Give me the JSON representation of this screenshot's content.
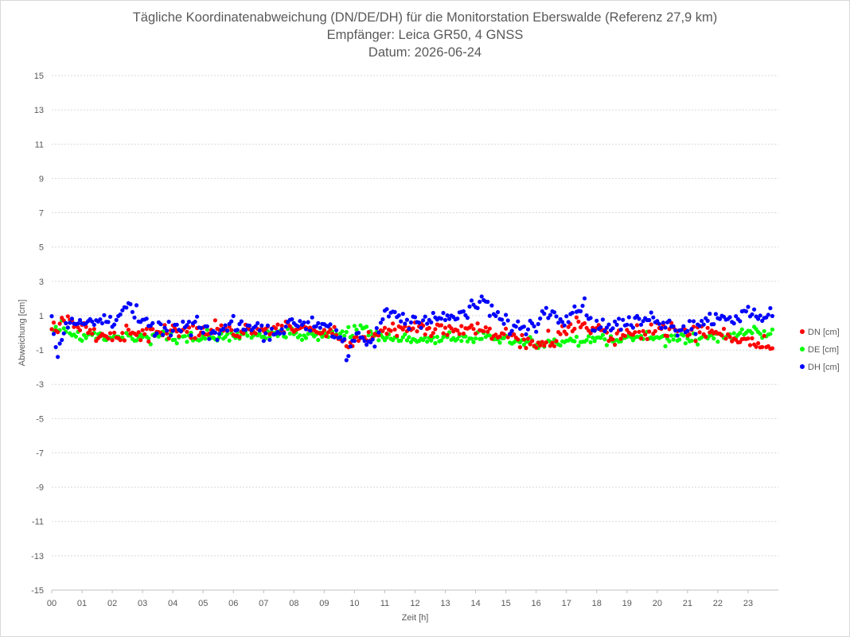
{
  "chart_data": {
    "type": "scatter",
    "title": "Tägliche Koordinatenabweichung (DN/DE/DH) für die Monitorstation Eberswalde (Referenz 27,9 km)",
    "subtitle": "Empfänger: Leica GR50, 4 GNSS",
    "subtitle2": "Datum: 2026-06-24",
    "xlabel": "Zeit [h]",
    "ylabel": "Abweichung [cm]",
    "xlim": [
      0,
      24
    ],
    "ylim": [
      -15,
      15
    ],
    "x_ticks": [
      "00",
      "01",
      "02",
      "03",
      "04",
      "05",
      "06",
      "07",
      "08",
      "09",
      "10",
      "11",
      "12",
      "13",
      "14",
      "15",
      "16",
      "17",
      "18",
      "19",
      "20",
      "21",
      "22",
      "23"
    ],
    "y_ticks": [
      "-15",
      "-13",
      "-11",
      "-9",
      "-7",
      "-5",
      "-3",
      "-1",
      "1",
      "3",
      "5",
      "7",
      "9",
      "11",
      "13",
      "15"
    ],
    "grid": "horizontal dotted",
    "legend_position": "right",
    "sample_interval_minutes": 4,
    "series": [
      {
        "name": "DN [cm]",
        "color": "#ff0000",
        "anchors_x": [
          0,
          0.5,
          1,
          1.5,
          2,
          2.5,
          3,
          4,
          5,
          6,
          6.5,
          7,
          7.5,
          8,
          8.5,
          9,
          9.4,
          9.7,
          10,
          10.5,
          11,
          11.5,
          12,
          12.5,
          13,
          13.5,
          14,
          14.5,
          15,
          15.5,
          16,
          16.5,
          17,
          17.5,
          18,
          18.5,
          19,
          19.5,
          20,
          20.5,
          21,
          21.5,
          22,
          22.5,
          23,
          23.7
        ],
        "anchors_y": [
          0.3,
          0.7,
          0.2,
          0.1,
          -0.3,
          0.2,
          -0.1,
          0,
          0.1,
          0.1,
          0.2,
          0.1,
          0.2,
          0.3,
          0.2,
          0.1,
          -0.2,
          -0.9,
          -0.4,
          -0.2,
          0.1,
          0.3,
          0.4,
          0.1,
          0.1,
          0.1,
          0.2,
          0.1,
          -0.1,
          -0.4,
          -0.5,
          -0.4,
          0.1,
          0.6,
          0.2,
          -0.2,
          -0.1,
          0.1,
          0.3,
          0.2,
          0,
          0.1,
          0,
          -0.3,
          -0.4,
          -0.7
        ],
        "noise": 0.3
      },
      {
        "name": "DE [cm]",
        "color": "#00ff00",
        "anchors_x": [
          0,
          0.5,
          1,
          1.5,
          2,
          3,
          4,
          5,
          6,
          7,
          8,
          9,
          9.5,
          10,
          10.5,
          11,
          12,
          13,
          14,
          15,
          15.5,
          16,
          17,
          18,
          18.5,
          19,
          20,
          21,
          22,
          22.5,
          23,
          23.8
        ],
        "anchors_y": [
          0.1,
          0.3,
          -0.3,
          -0.2,
          -0.4,
          -0.3,
          -0.2,
          -0.3,
          -0.2,
          -0.1,
          -0.1,
          -0.1,
          -0.1,
          0.1,
          0,
          -0.3,
          -0.4,
          -0.3,
          -0.3,
          -0.3,
          -0.5,
          -0.7,
          -0.4,
          -0.4,
          -0.4,
          -0.3,
          -0.3,
          -0.3,
          -0.2,
          -0.1,
          0,
          0.1
        ],
        "noise": 0.25
      },
      {
        "name": "DH [cm]",
        "color": "#0000ff",
        "anchors_x": [
          0,
          0.2,
          0.5,
          1,
          1.5,
          2,
          2.5,
          3,
          3.5,
          4,
          4.5,
          5,
          5.5,
          6,
          6.5,
          7,
          7.5,
          8,
          8.5,
          9,
          9.5,
          9.8,
          10,
          10.3,
          10.6,
          11,
          11.3,
          11.7,
          12,
          12.5,
          13,
          13.5,
          14,
          14.3,
          14.6,
          15,
          15.5,
          16,
          16.3,
          16.6,
          17,
          17.5,
          18,
          18.5,
          19,
          19.5,
          20,
          20.5,
          21,
          21.5,
          22,
          22.5,
          23,
          23.5,
          23.8
        ],
        "anchors_y": [
          0.6,
          -0.9,
          0.5,
          0.5,
          0.7,
          0.8,
          1.6,
          0.5,
          0.2,
          0.2,
          0.3,
          0.3,
          -0.2,
          0.7,
          0.3,
          0.2,
          0.1,
          0.6,
          0.5,
          0.6,
          -0.2,
          -1.5,
          -0.3,
          -0.5,
          -0.6,
          1.0,
          1.3,
          0.6,
          0.8,
          0.9,
          0.8,
          1.0,
          1.5,
          2.0,
          1.0,
          0.6,
          0.2,
          0.6,
          1.2,
          1.3,
          0.9,
          1.7,
          0.3,
          0.5,
          0.5,
          0.7,
          0.9,
          0.3,
          0.4,
          0.6,
          1.0,
          0.9,
          1.1,
          0.8,
          1.0
        ],
        "noise": 0.35
      }
    ]
  }
}
